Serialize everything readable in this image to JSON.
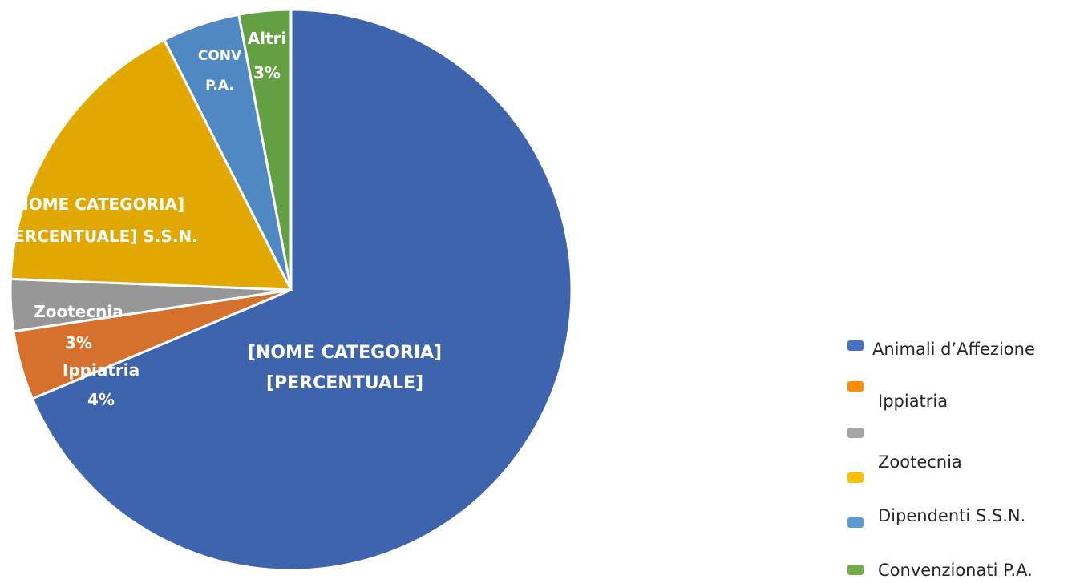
{
  "chart_data": {
    "type": "pie",
    "slices": [
      {
        "category": "Animali d’Affezione",
        "value": 69,
        "color": "#3E64AD",
        "label_lines": [
          "[NOME CATEGORIA]",
          "[PERCENTUALE]"
        ]
      },
      {
        "category": "Ippiatria",
        "value": 4,
        "color": "#D5702D",
        "label_lines": [
          "Ippiatria",
          "4%"
        ]
      },
      {
        "category": "Zootecnia",
        "value": 3,
        "color": "#979797",
        "label_lines": [
          "Zootecnia",
          "3%"
        ]
      },
      {
        "category": "Dipendenti S.S.N.",
        "value": 17,
        "color": "#E0A800",
        "label_lines": [
          "[NOME CATEGORIA]",
          "[PERCENTUALE] S.S.N."
        ]
      },
      {
        "category": "Convenzionati P.A.",
        "value": 4.5,
        "color": "#5088C2",
        "label_lines": [
          "CONV",
          "P.A."
        ]
      },
      {
        "category": "Altri",
        "value": 3,
        "color": "#62A043",
        "label_lines": [
          "Altri",
          "3%"
        ]
      }
    ],
    "legend": {
      "position": "right",
      "entries": [
        {
          "label": "Animali d’Affezione",
          "color": "#4472C4"
        },
        {
          "label": "Ippiatria",
          "color": "#FF8C00"
        },
        {
          "label": "Zootecnia",
          "color": "#A5A5A5"
        },
        {
          "label": "Dipendenti S.S.N.",
          "color": "#FFC000"
        },
        {
          "label": "Convenzionati P.A.",
          "color": "#5B9BD5"
        },
        {
          "label": "",
          "color": "#70AD47"
        }
      ]
    }
  }
}
